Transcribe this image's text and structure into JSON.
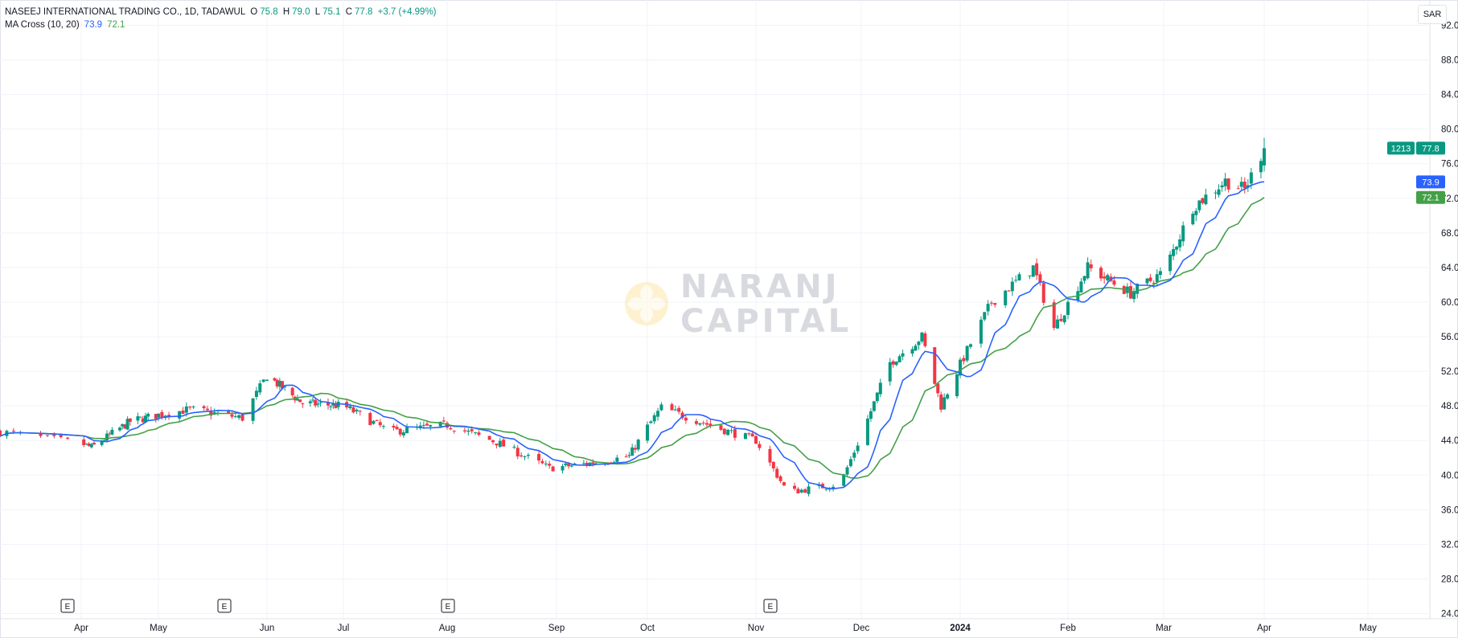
{
  "legend": {
    "symbol": "NASEEJ INTERNATIONAL TRADING CO., 1D, TADAWUL",
    "open_label": "O",
    "open": "75.8",
    "high_label": "H",
    "high": "79.0",
    "low_label": "L",
    "low": "75.1",
    "close_label": "C",
    "close": "77.8",
    "change": "+3.7 (+4.99%)",
    "indicator": "MA Cross (10, 20)",
    "ma10_value": "73.9",
    "ma20_value": "72.1"
  },
  "currency_button": "SAR",
  "watermark": {
    "line1": "NARANJ",
    "line2": "CAPITAL"
  },
  "price_tags": {
    "countdown": "1213",
    "last_price": "77.8",
    "ma10": "73.9",
    "ma20": "72.1"
  },
  "earnings_marker": "E",
  "colors": {
    "up": "#089981",
    "down": "#f23645",
    "ma10": "#2962ff",
    "ma20": "#43a047",
    "grid": "#f0f3fa",
    "axis_text": "#131722"
  },
  "chart_data": {
    "type": "candlestick",
    "ylim": [
      24,
      92
    ],
    "y_ticks": [
      "24.00",
      "28.00",
      "32.00",
      "36.00",
      "40.00",
      "44.00",
      "48.00",
      "52.00",
      "56.00",
      "60.00",
      "64.00",
      "68.00",
      "72.00",
      "76.00",
      "80.00",
      "84.00",
      "88.00",
      "92.00"
    ],
    "x_labels": [
      "Apr",
      "May",
      "Jun",
      "Jul",
      "Aug",
      "Sep",
      "Oct",
      "Nov",
      "Dec",
      "2024",
      "Feb",
      "Mar",
      "Apr",
      "May"
    ],
    "bold_x_labels": [
      "2024"
    ],
    "earnings_months": [
      "Apr",
      "Jun",
      "Aug",
      "Nov"
    ],
    "close_path": [
      {
        "date": "2023-03-20",
        "close": 45.0
      },
      {
        "date": "2023-04-05",
        "close": 43.2
      },
      {
        "date": "2023-04-20",
        "close": 46.2
      },
      {
        "date": "2023-05-10",
        "close": 47.6
      },
      {
        "date": "2023-05-25",
        "close": 46.6
      },
      {
        "date": "2023-06-01",
        "close": 51.5
      },
      {
        "date": "2023-06-15",
        "close": 48.3
      },
      {
        "date": "2023-07-01",
        "close": 48.0
      },
      {
        "date": "2023-07-15",
        "close": 45.0
      },
      {
        "date": "2023-08-01",
        "close": 45.8
      },
      {
        "date": "2023-08-15",
        "close": 43.8
      },
      {
        "date": "2023-08-30",
        "close": 40.8
      },
      {
        "date": "2023-09-15",
        "close": 41.5
      },
      {
        "date": "2023-09-25",
        "close": 42.2
      },
      {
        "date": "2023-10-05",
        "close": 47.8
      },
      {
        "date": "2023-10-20",
        "close": 45.6
      },
      {
        "date": "2023-11-01",
        "close": 44.0
      },
      {
        "date": "2023-11-10",
        "close": 38.0
      },
      {
        "date": "2023-11-25",
        "close": 39.0
      },
      {
        "date": "2023-12-10",
        "close": 53.0
      },
      {
        "date": "2023-12-20",
        "close": 56.0
      },
      {
        "date": "2023-12-26",
        "close": 48.0
      },
      {
        "date": "2024-01-10",
        "close": 60.0
      },
      {
        "date": "2024-01-22",
        "close": 64.0
      },
      {
        "date": "2024-01-28",
        "close": 57.0
      },
      {
        "date": "2024-02-07",
        "close": 64.0
      },
      {
        "date": "2024-02-20",
        "close": 61.0
      },
      {
        "date": "2024-03-01",
        "close": 63.5
      },
      {
        "date": "2024-03-10",
        "close": 71.0
      },
      {
        "date": "2024-03-20",
        "close": 74.0
      },
      {
        "date": "2024-03-26",
        "close": 73.0
      },
      {
        "date": "2024-04-01",
        "close": 77.8
      }
    ],
    "last": {
      "open": 75.8,
      "high": 79.0,
      "low": 75.1,
      "close": 77.8,
      "ma10": 73.9,
      "ma20": 72.1
    }
  }
}
